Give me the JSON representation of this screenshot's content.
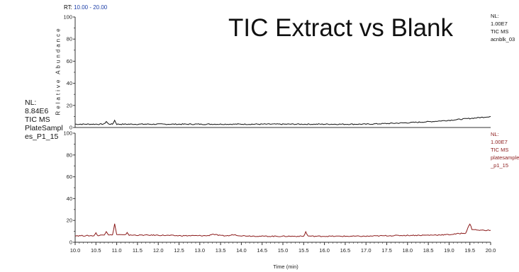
{
  "slide": {
    "title": "TIC Extract vs Blank"
  },
  "header": {
    "rt_prefix": "RT:",
    "rt_range": "10.00 - 20.00"
  },
  "left_label": {
    "lines": [
      "NL:",
      "8.84E6",
      "TIC  MS",
      "PlateSampl",
      "es_P1_15"
    ]
  },
  "chart_data": {
    "type": "line",
    "title": "",
    "xlabel": "Time (min)",
    "ylabel": "Relative Abundance",
    "xlim": [
      10.0,
      20.0
    ],
    "ylim": [
      0,
      100
    ],
    "grid": false,
    "x_ticks": [
      "10.0",
      "10.5",
      "11.0",
      "11.5",
      "12.0",
      "12.5",
      "13.0",
      "13.5",
      "14.0",
      "14.5",
      "15.0",
      "15.5",
      "16.0",
      "16.5",
      "17.0",
      "17.5",
      "18.0",
      "18.5",
      "19.0",
      "19.5",
      "20.0"
    ],
    "y_ticks": [
      "0",
      "20",
      "40",
      "60",
      "80",
      "100"
    ],
    "panels": [
      {
        "name": "acnblk_03",
        "color": "#111111",
        "nl_lines": [
          "NL:",
          "1.00E7",
          "TIC  MS",
          "acnblk_03"
        ],
        "x": [
          10.0,
          10.3,
          10.6,
          10.7,
          10.75,
          10.8,
          10.9,
          10.95,
          11.0,
          11.2,
          11.5,
          12.0,
          12.5,
          13.0,
          13.5,
          14.0,
          14.5,
          15.0,
          15.5,
          16.0,
          16.5,
          17.0,
          17.5,
          18.0,
          18.5,
          19.0,
          19.5,
          19.8,
          20.0
        ],
        "y": [
          3,
          3,
          3,
          3.2,
          5.5,
          3.2,
          3,
          6.5,
          3,
          3,
          3,
          3,
          3,
          3,
          3,
          3,
          3,
          3,
          3,
          3,
          3,
          3,
          3.6,
          4.3,
          5.2,
          6.5,
          8.2,
          9.2,
          10
        ]
      },
      {
        "name": "platesample_p1_15",
        "color": "#8b1a1a",
        "nl_lines": [
          "NL:",
          "1.00E7",
          "TIC  MS",
          "platesample",
          "_p1_15"
        ],
        "x": [
          10.0,
          10.3,
          10.45,
          10.5,
          10.55,
          10.7,
          10.75,
          10.8,
          10.9,
          10.95,
          11.0,
          11.2,
          11.25,
          11.3,
          11.5,
          12.0,
          12.5,
          13.0,
          13.2,
          13.3,
          13.5,
          13.7,
          13.8,
          14.0,
          14.5,
          15.0,
          15.5,
          15.55,
          15.6,
          15.7,
          16.0,
          16.5,
          17.0,
          17.5,
          18.0,
          18.5,
          19.0,
          19.4,
          19.5,
          19.55,
          19.7,
          20.0
        ],
        "y": [
          6,
          6,
          6,
          8.5,
          6,
          7,
          10,
          7,
          6.5,
          17,
          7,
          6.5,
          9,
          6.5,
          6.5,
          6.5,
          6,
          6,
          6,
          7.5,
          6,
          6,
          7,
          6,
          5.5,
          5.5,
          5.5,
          9.5,
          5.8,
          5.5,
          5.5,
          5.5,
          5.5,
          6,
          6.3,
          6.5,
          7,
          8.5,
          17,
          12,
          11,
          11
        ]
      }
    ]
  }
}
